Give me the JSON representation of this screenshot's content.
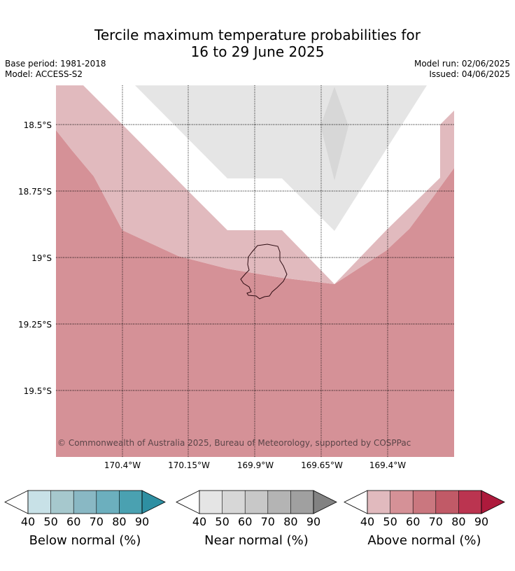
{
  "title": {
    "line1": "Tercile maximum temperature probabilities for",
    "line2": "16 to 29 June 2025"
  },
  "meta": {
    "base_period": "Base period: 1981-2018",
    "model": "Model: ACCESS-S2",
    "model_run": "Model run: 02/06/2025",
    "issued": "Issued: 04/06/2025"
  },
  "map": {
    "latitudes": [
      "18.5°S",
      "18.75°S",
      "19°S",
      "19.25°S",
      "19.5°S"
    ],
    "longitudes": [
      "170.4°W",
      "170.15°W",
      "169.9°W",
      "169.65°W",
      "169.4°W"
    ],
    "copyright": "© Commonwealth of Australia 2025, Bureau of Meteorology, supported by COSPPac",
    "colors": {
      "above_light": "#e1babe",
      "above_mid": "#d59197",
      "near_light": "#e5e5e5",
      "near_mid": "#d7d7d7"
    }
  },
  "colorbars": [
    {
      "label": "Below normal (%)",
      "ticks": [
        "40",
        "50",
        "60",
        "70",
        "80",
        "90"
      ],
      "colors": [
        "#ffffff",
        "#c8e1e7",
        "#a6c8cd",
        "#89b8c4",
        "#6cafbe",
        "#4aa1b1",
        "#2e8fa2"
      ]
    },
    {
      "label": "Near normal (%)",
      "ticks": [
        "40",
        "50",
        "60",
        "70",
        "80",
        "90"
      ],
      "colors": [
        "#ffffff",
        "#e5e5e5",
        "#d7d7d7",
        "#c8c8c8",
        "#b4b4b4",
        "#a0a0a0",
        "#828282"
      ]
    },
    {
      "label": "Above normal (%)",
      "ticks": [
        "40",
        "50",
        "60",
        "70",
        "80",
        "90"
      ],
      "colors": [
        "#ffffff",
        "#e1babe",
        "#d59197",
        "#ca777f",
        "#c15a67",
        "#bb3450",
        "#ad1a3c"
      ]
    }
  ]
}
